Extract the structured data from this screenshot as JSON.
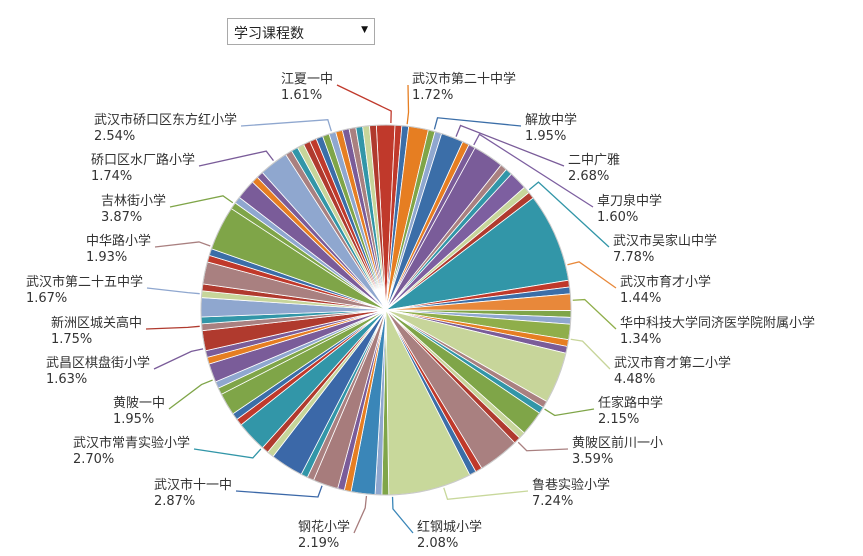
{
  "controls": {
    "metric_select": {
      "selected": "学习课程数"
    }
  },
  "chart_data": {
    "type": "pie",
    "labeled_slices": [
      {
        "name": "江夏一中",
        "value": "1.61%",
        "color": "#C0392B"
      },
      {
        "name": "武汉市第二十中学",
        "value": "1.72%",
        "color": "#E67E22"
      },
      {
        "name": "解放中学",
        "value": "1.95%",
        "color": "#3B6EA8"
      },
      {
        "name": "二中广雅",
        "value": "2.68%",
        "color": "#7A5C99"
      },
      {
        "name": "卓刀泉中学",
        "value": "1.60%",
        "color": "#7D5FA0"
      },
      {
        "name": "武汉市吴家山中学",
        "value": "7.78%",
        "color": "#3296A8"
      },
      {
        "name": "武汉市育才小学",
        "value": "1.44%",
        "color": "#E8883A"
      },
      {
        "name": "华中科技大学同济医学院附属小学",
        "value": "1.34%",
        "color": "#8FAE4A"
      },
      {
        "name": "武汉市育才第二小学",
        "value": "4.48%",
        "color": "#C7D59A"
      },
      {
        "name": "任家路中学",
        "value": "2.15%",
        "color": "#7FA548"
      },
      {
        "name": "黄陂区前川一小",
        "value": "3.59%",
        "color": "#A98080"
      },
      {
        "name": "鲁巷实验小学",
        "value": "7.24%",
        "color": "#C8D89B"
      },
      {
        "name": "红钢城小学",
        "value": "2.08%",
        "color": "#3A86B8"
      },
      {
        "name": "钢花小学",
        "value": "2.19%",
        "color": "#A77C7C"
      },
      {
        "name": "武汉市十一中",
        "value": "2.87%",
        "color": "#3B68A8"
      },
      {
        "name": "武汉市常青实验小学",
        "value": "2.70%",
        "color": "#3296A8"
      },
      {
        "name": "黄陂一中",
        "value": "1.95%",
        "color": "#7FA548"
      },
      {
        "name": "武昌区棋盘街小学",
        "value": "1.63%",
        "color": "#7A5C99"
      },
      {
        "name": "新洲区城关高中",
        "value": "1.75%",
        "color": "#B03A2E"
      },
      {
        "name": "武汉市第二十五中学",
        "value": "1.67%",
        "color": "#8FA7CF"
      },
      {
        "name": "中华路小学",
        "value": "1.93%",
        "color": "#A98080"
      },
      {
        "name": "吉林街小学",
        "value": "3.87%",
        "color": "#7FA548"
      },
      {
        "name": "硚口区水厂路小学",
        "value": "1.74%",
        "color": "#7A5C99"
      },
      {
        "name": "武汉市硚口区东方红小学",
        "value": "2.54%",
        "color": "#8FA7CF"
      }
    ],
    "other_slice_colors": [
      "#C0392B",
      "#3B6EA8",
      "#7FA548",
      "#8FA7CF",
      "#E67E22",
      "#7A5C99",
      "#A98080",
      "#3296A8",
      "#C7D59A",
      "#B03A2E"
    ]
  }
}
